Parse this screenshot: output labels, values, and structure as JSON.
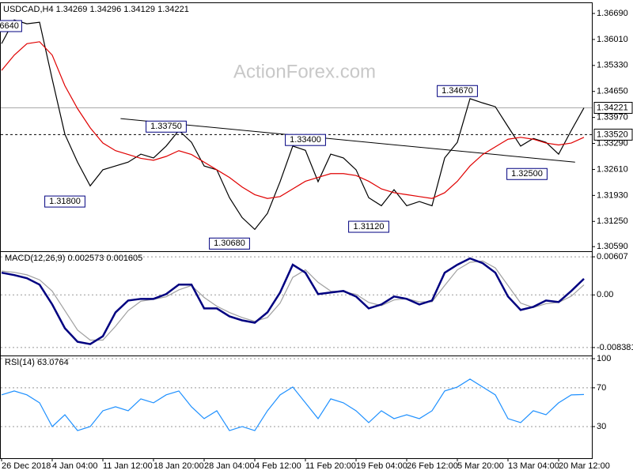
{
  "watermark": "ActionForex.com",
  "chart_data": [
    {
      "type": "line",
      "title": "USDCAD,H4  1.34269 1.34296 1.34129 1.34221",
      "ylim": [
        1.3047,
        1.3698
      ],
      "yticks": [
        {
          "value": 1.3669,
          "label": "1.36690"
        },
        {
          "value": 1.3601,
          "label": "1.36010"
        },
        {
          "value": 1.3533,
          "label": "1.35330"
        },
        {
          "value": 1.3465,
          "label": "1.34650"
        },
        {
          "value": 1.3397,
          "label": "1.33970"
        },
        {
          "value": 1.3329,
          "label": "1.33290"
        },
        {
          "value": 1.3261,
          "label": "1.32610"
        },
        {
          "value": 1.3193,
          "label": "1.31930"
        },
        {
          "value": 1.3125,
          "label": "1.31250"
        },
        {
          "value": 1.3059,
          "label": "1.30590"
        }
      ],
      "grid": false,
      "series": [
        {
          "color": "#000000",
          "values": [
            1.359,
            1.3652,
            1.3642,
            1.3646,
            1.3497,
            1.3353,
            1.328,
            1.3218,
            1.326,
            1.327,
            1.328,
            1.3301,
            1.3291,
            1.3322,
            1.3363,
            1.3332,
            1.327,
            1.326,
            1.3187,
            1.3135,
            1.3104,
            1.3146,
            1.3229,
            1.3322,
            1.3311,
            1.3229,
            1.3301,
            1.3291,
            1.326,
            1.3187,
            1.3166,
            1.3208,
            1.3166,
            1.3177,
            1.3166,
            1.3291,
            1.3332,
            1.3446,
            1.3435,
            1.3425,
            1.3373,
            1.3322,
            1.3342,
            1.3332,
            1.3301,
            1.3363,
            1.3422
          ]
        },
        {
          "color": "#e00000",
          "values": [
            1.352,
            1.356,
            1.359,
            1.3595,
            1.356,
            1.348,
            1.342,
            1.337,
            1.333,
            1.331,
            1.33,
            1.329,
            1.3285,
            1.3295,
            1.331,
            1.33,
            1.328,
            1.326,
            1.324,
            1.3215,
            1.3195,
            1.3185,
            1.319,
            1.321,
            1.323,
            1.324,
            1.325,
            1.325,
            1.3245,
            1.323,
            1.321,
            1.32,
            1.3195,
            1.319,
            1.3185,
            1.32,
            1.323,
            1.327,
            1.33,
            1.332,
            1.334,
            1.3345,
            1.334,
            1.333,
            1.3325,
            1.333,
            1.3345
          ]
        }
      ],
      "trendline": {
        "x": [
          9.4,
          45.3
        ],
        "y": [
          1.3394,
          1.328
        ]
      },
      "level": {
        "value": 1.3352,
        "label": "1.33520"
      },
      "last_price": {
        "value": 1.34221,
        "label": "1.34221"
      },
      "annotations": [
        {
          "text": "6640",
          "x": 0.6,
          "y": 1.3636
        },
        {
          "text": "1.31800",
          "x": 5,
          "y": 1.3177
        },
        {
          "text": "1.33750",
          "x": 13,
          "y": 1.3373
        },
        {
          "text": "1.30680",
          "x": 18,
          "y": 1.3067
        },
        {
          "text": "1.33400",
          "x": 24,
          "y": 1.3338
        },
        {
          "text": "1.31120",
          "x": 29,
          "y": 1.3111
        },
        {
          "text": "1.34670",
          "x": 36,
          "y": 1.3466
        },
        {
          "text": "1.32500",
          "x": 41.5,
          "y": 1.3249
        }
      ]
    },
    {
      "type": "line",
      "title": "MACD(12,26,9) 0.002573 0.001605",
      "ylim": [
        -0.00965,
        0.00696
      ],
      "yticks": [
        0.00607,
        {
          "value": 0,
          "label": "0.00"
        },
        -0.008381
      ],
      "grid": true,
      "series": [
        {
          "color": "#a0a0a0",
          "values": [
            0.0038,
            0.0036,
            0.0032,
            0.0024,
            0.0006,
            -0.0025,
            -0.0056,
            -0.0072,
            -0.0072,
            -0.005,
            -0.0025,
            -0.001,
            -0.0007,
            -0.0003,
            0.0008,
            0.0015,
            -0.0004,
            -0.0018,
            -0.0028,
            -0.0036,
            -0.0042,
            -0.0036,
            -0.0013,
            0.0028,
            0.004,
            0.002,
            0.0006,
            0.0005,
            0.0001,
            -0.0012,
            -0.0017,
            -0.0008,
            -0.0006,
            -0.0011,
            -0.0011,
            0.0015,
            0.004,
            0.0052,
            0.0054,
            0.0043,
            0.0015,
            -0.0013,
            -0.002,
            -0.0014,
            -0.0012,
            -0.0002,
            0.00161
          ]
        },
        {
          "color": "#000080",
          "values": [
            0.00354,
            0.00316,
            0.00266,
            0.00164,
            -0.00152,
            -0.00531,
            -0.00746,
            -0.00784,
            -0.00658,
            -0.00278,
            -0.00089,
            -0.00063,
            -0.00063,
            0.00013,
            0.00164,
            0.00164,
            -0.00215,
            -0.00215,
            -0.00342,
            -0.00405,
            -0.00443,
            -0.00278,
            0.00038,
            0.00481,
            0.00354,
            0.00013,
            0.00038,
            0.00063,
            -0.00025,
            -0.00215,
            -0.00152,
            -0.00025,
            -0.00063,
            -0.00152,
            -0.00089,
            0.00354,
            0.00481,
            0.00582,
            0.00506,
            0.00354,
            -0.00025,
            -0.0024,
            -0.0019,
            -0.00089,
            -0.00114,
            0.00063,
            0.00257
          ]
        }
      ]
    },
    {
      "type": "line",
      "title": "RSI(14) 63.0764",
      "ylim": [
        -2.6,
        103.3
      ],
      "yticks": [
        100,
        70,
        30
      ],
      "grid": true,
      "categories": [
        "26 Dec 2018",
        null,
        null,
        null,
        "4 Jan 04:00",
        null,
        null,
        null,
        "11 Jan 12:00",
        null,
        null,
        null,
        "18 Jan 20:00",
        null,
        null,
        null,
        "28 Jan 04:00",
        null,
        null,
        null,
        "4 Feb 12:00",
        null,
        null,
        null,
        "11 Feb 20:00",
        null,
        null,
        null,
        "19 Feb 04:00",
        null,
        null,
        null,
        "26 Feb 12:00",
        null,
        null,
        null,
        "5 Mar 20:00",
        null,
        null,
        null,
        "13 Mar 04:00",
        null,
        null,
        null,
        "20 Mar 12:00",
        null,
        null
      ],
      "series": [
        {
          "color": "#1e90ff",
          "values": [
            62.7,
            66.7,
            62.7,
            54.5,
            30,
            42.2,
            25.9,
            30,
            46.3,
            50.4,
            46.3,
            58.6,
            54.5,
            62.7,
            66.7,
            50.4,
            38.2,
            46.3,
            25.9,
            30,
            25.9,
            46.3,
            62.7,
            70.8,
            54.5,
            38.2,
            58.6,
            54.5,
            46.3,
            34.1,
            46.3,
            38.2,
            42.2,
            38.2,
            46.3,
            66.7,
            70.8,
            79,
            70.8,
            62.7,
            38.2,
            34.1,
            46.3,
            42.2,
            54.5,
            62.7,
            63.1
          ]
        }
      ]
    }
  ]
}
